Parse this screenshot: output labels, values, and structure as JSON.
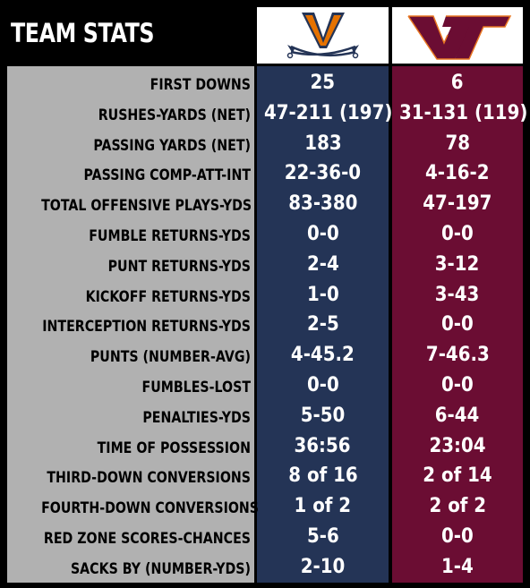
{
  "header": {
    "title": "TEAM STATS",
    "teams": [
      {
        "key": "uva",
        "logo": "uva-v-sabres-logo",
        "colors": {
          "primary": "#243456",
          "accent": "#e57200"
        }
      },
      {
        "key": "vt",
        "logo": "vt-logo",
        "colors": {
          "primary": "#6b0d33",
          "accent": "#e87722"
        }
      }
    ]
  },
  "colors": {
    "label_bg": "#b1b1b1",
    "uva_bg": "#243456",
    "vt_bg": "#6b0d33"
  },
  "rows": [
    {
      "label": "FIRST DOWNS",
      "uva": "25",
      "vt": "6"
    },
    {
      "label": "RUSHES-YARDS (NET)",
      "uva": "47-211 (197)",
      "vt": "31-131 (119)"
    },
    {
      "label": "PASSING YARDS (NET)",
      "uva": "183",
      "vt": "78"
    },
    {
      "label": "PASSING COMP-ATT-INT",
      "uva": "22-36-0",
      "vt": "4-16-2"
    },
    {
      "label": "TOTAL OFFENSIVE PLAYS-YDS",
      "uva": "83-380",
      "vt": "47-197"
    },
    {
      "label": "FUMBLE RETURNS-YDS",
      "uva": "0-0",
      "vt": "0-0"
    },
    {
      "label": "PUNT RETURNS-YDS",
      "uva": "2-4",
      "vt": "3-12"
    },
    {
      "label": "KICKOFF RETURNS-YDS",
      "uva": "1-0",
      "vt": "3-43"
    },
    {
      "label": "INTERCEPTION RETURNS-YDS",
      "uva": "2-5",
      "vt": "0-0"
    },
    {
      "label": "PUNTS (NUMBER-AVG)",
      "uva": "4-45.2",
      "vt": "7-46.3"
    },
    {
      "label": "FUMBLES-LOST",
      "uva": "0-0",
      "vt": "0-0"
    },
    {
      "label": "PENALTIES-YDS",
      "uva": "5-50",
      "vt": "6-44"
    },
    {
      "label": "TIME OF POSSESSION",
      "uva": "36:56",
      "vt": "23:04"
    },
    {
      "label": "THIRD-DOWN CONVERSIONS",
      "uva": "8 of 16",
      "vt": "2 of 14"
    },
    {
      "label": "FOURTH-DOWN CONVERSIONS",
      "uva": "1 of 2",
      "vt": "2 of 2"
    },
    {
      "label": "RED ZONE SCORES-CHANCES",
      "uva": "5-6",
      "vt": "0-0"
    },
    {
      "label": "SACKS BY (NUMBER-YDS)",
      "uva": "2-10",
      "vt": "1-4"
    }
  ]
}
